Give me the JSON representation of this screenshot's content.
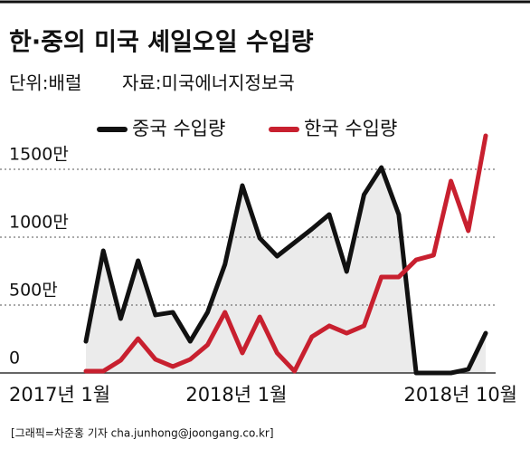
{
  "chart_data": {
    "type": "line",
    "title": "한·중의 미국 셰일오일 수입량",
    "unit": "단위:배럴",
    "source": "자료:미국에너지정보국",
    "credit": "[그래픽=차준홍 기자 cha.junhong@joongang.co.kr]",
    "categories": [
      "2017년 1월",
      null,
      null,
      null,
      null,
      null,
      null,
      null,
      null,
      null,
      null,
      "2018년 1월",
      null,
      null,
      null,
      null,
      null,
      null,
      null,
      null,
      null,
      null,
      null,
      "2018년 10월"
    ],
    "series": [
      {
        "name": "중국 수입량",
        "color": "#111111",
        "area_color": "#ebebeb",
        "values": [
          233,
          900,
          400,
          827,
          427,
          447,
          233,
          447,
          800,
          1380,
          993,
          860,
          960,
          1060,
          1167,
          747,
          1313,
          1513,
          1167,
          0,
          0,
          0,
          27,
          293
        ]
      },
      {
        "name": "한국 수입량",
        "color": "#c8202f",
        "values": [
          13,
          13,
          93,
          253,
          100,
          47,
          100,
          207,
          447,
          147,
          413,
          147,
          13,
          267,
          347,
          293,
          347,
          707,
          707,
          833,
          867,
          1413,
          1047,
          1747
        ]
      }
    ],
    "ylim": [
      0,
      1800
    ],
    "yticks": [
      0,
      {
        "value": 500,
        "label": "500만"
      },
      {
        "value": 1000,
        "label": "1000만"
      },
      {
        "value": 1500,
        "label": "1500만"
      }
    ],
    "grid": true
  }
}
